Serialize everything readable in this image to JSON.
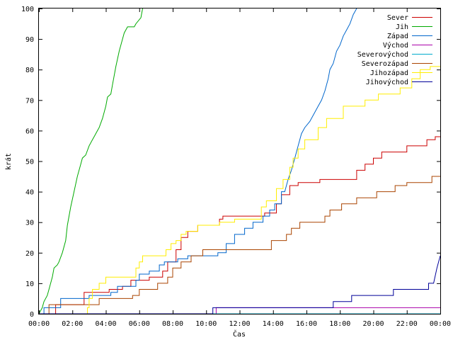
{
  "chart_data": {
    "type": "line",
    "xlabel": "Čas",
    "ylabel": "krát",
    "xlim": [
      0,
      24
    ],
    "ylim": [
      0,
      100
    ],
    "x_ticks": [
      {
        "value": 0,
        "label": "00:00"
      },
      {
        "value": 2,
        "label": "02:00"
      },
      {
        "value": 4,
        "label": "04:00"
      },
      {
        "value": 6,
        "label": "06:00"
      },
      {
        "value": 8,
        "label": "08:00"
      },
      {
        "value": 10,
        "label": "10:00"
      },
      {
        "value": 12,
        "label": "12:00"
      },
      {
        "value": 14,
        "label": "14:00"
      },
      {
        "value": 16,
        "label": "16:00"
      },
      {
        "value": 18,
        "label": "18:00"
      },
      {
        "value": 20,
        "label": "20:00"
      },
      {
        "value": 22,
        "label": "22:00"
      },
      {
        "value": 24,
        "label": "00:00"
      }
    ],
    "y_ticks": [
      0,
      10,
      20,
      30,
      40,
      50,
      60,
      70,
      80,
      90,
      100
    ],
    "grid": false,
    "legend_position": "top-right",
    "series": [
      {
        "name": "Sever",
        "color": "#cc0000",
        "points": [
          [
            0,
            0
          ],
          [
            1,
            0
          ],
          [
            1,
            3
          ],
          [
            2.7,
            3
          ],
          [
            2.7,
            7
          ],
          [
            4.2,
            7
          ],
          [
            4.2,
            8
          ],
          [
            5,
            8
          ],
          [
            5,
            9
          ],
          [
            5.5,
            9
          ],
          [
            5.5,
            11
          ],
          [
            6.6,
            11
          ],
          [
            6.6,
            12
          ],
          [
            7.4,
            12
          ],
          [
            7.4,
            14
          ],
          [
            7.7,
            14
          ],
          [
            7.7,
            17
          ],
          [
            8.2,
            17
          ],
          [
            8.2,
            21
          ],
          [
            8.5,
            21
          ],
          [
            8.5,
            25
          ],
          [
            8.9,
            25
          ],
          [
            8.9,
            27
          ],
          [
            9.5,
            27
          ],
          [
            9.5,
            29
          ],
          [
            10.4,
            29
          ],
          [
            10.4,
            29
          ],
          [
            10.8,
            29
          ],
          [
            10.8,
            31
          ],
          [
            11,
            31
          ],
          [
            11,
            32
          ],
          [
            13.5,
            32
          ],
          [
            13.5,
            33
          ],
          [
            14.2,
            33
          ],
          [
            14.2,
            36
          ],
          [
            14.5,
            36
          ],
          [
            14.5,
            39
          ],
          [
            15,
            39
          ],
          [
            15,
            42
          ],
          [
            15.5,
            42
          ],
          [
            15.5,
            43
          ],
          [
            16.8,
            43
          ],
          [
            16.8,
            44
          ],
          [
            19,
            44
          ],
          [
            19,
            47
          ],
          [
            19.5,
            47
          ],
          [
            19.5,
            49
          ],
          [
            20,
            49
          ],
          [
            20,
            51
          ],
          [
            20.5,
            51
          ],
          [
            20.5,
            53
          ],
          [
            22,
            53
          ],
          [
            22,
            55
          ],
          [
            23.2,
            55
          ],
          [
            23.2,
            57
          ],
          [
            23.7,
            57
          ],
          [
            23.7,
            58
          ],
          [
            24,
            58
          ]
        ]
      },
      {
        "name": "Jih",
        "color": "#00aa00",
        "points": [
          [
            0,
            0
          ],
          [
            0.2,
            2
          ],
          [
            0.3,
            4
          ],
          [
            0.5,
            6
          ],
          [
            0.6,
            8
          ],
          [
            0.8,
            12
          ],
          [
            0.9,
            15
          ],
          [
            1.1,
            16
          ],
          [
            1.2,
            17
          ],
          [
            1.4,
            20
          ],
          [
            1.6,
            24
          ],
          [
            1.7,
            29
          ],
          [
            1.9,
            35
          ],
          [
            2.1,
            40
          ],
          [
            2.3,
            45
          ],
          [
            2.5,
            49
          ],
          [
            2.6,
            51
          ],
          [
            2.8,
            52
          ],
          [
            3,
            55
          ],
          [
            3.2,
            57
          ],
          [
            3.3,
            58
          ],
          [
            3.5,
            60
          ],
          [
            3.6,
            61
          ],
          [
            3.8,
            64
          ],
          [
            4,
            68
          ],
          [
            4.1,
            71
          ],
          [
            4.3,
            72
          ],
          [
            4.4,
            75
          ],
          [
            4.6,
            81
          ],
          [
            4.8,
            86
          ],
          [
            5,
            90
          ],
          [
            5.1,
            92
          ],
          [
            5.3,
            94
          ],
          [
            5.7,
            94
          ],
          [
            5.8,
            95
          ],
          [
            6.1,
            97
          ],
          [
            6.2,
            100
          ]
        ]
      },
      {
        "name": "Západ",
        "color": "#0066cc",
        "points": [
          [
            0,
            0
          ],
          [
            0.3,
            0
          ],
          [
            0.3,
            2
          ],
          [
            1.3,
            2
          ],
          [
            1.3,
            5
          ],
          [
            3,
            5
          ],
          [
            3,
            6
          ],
          [
            4.3,
            6
          ],
          [
            4.3,
            7
          ],
          [
            4.7,
            7
          ],
          [
            4.7,
            9
          ],
          [
            5.8,
            9
          ],
          [
            5.8,
            11
          ],
          [
            6,
            11
          ],
          [
            6,
            13
          ],
          [
            6.6,
            13
          ],
          [
            6.6,
            14
          ],
          [
            7.2,
            14
          ],
          [
            7.2,
            16
          ],
          [
            7.5,
            16
          ],
          [
            7.5,
            17
          ],
          [
            8.3,
            17
          ],
          [
            8.3,
            18
          ],
          [
            8.9,
            18
          ],
          [
            8.9,
            19
          ],
          [
            10.7,
            19
          ],
          [
            10.7,
            20
          ],
          [
            11.2,
            20
          ],
          [
            11.2,
            23
          ],
          [
            11.7,
            23
          ],
          [
            11.7,
            26
          ],
          [
            12.3,
            26
          ],
          [
            12.3,
            28
          ],
          [
            12.8,
            28
          ],
          [
            12.8,
            30
          ],
          [
            13.4,
            30
          ],
          [
            13.4,
            32
          ],
          [
            13.8,
            32
          ],
          [
            13.8,
            34
          ],
          [
            14.1,
            34
          ],
          [
            14.1,
            36
          ],
          [
            14.5,
            36
          ],
          [
            14.5,
            40
          ],
          [
            14.7,
            40
          ],
          [
            14.9,
            44
          ],
          [
            15.1,
            47
          ],
          [
            15.3,
            51
          ],
          [
            15.5,
            55
          ],
          [
            15.7,
            59
          ],
          [
            15.9,
            61
          ],
          [
            16.2,
            63
          ],
          [
            16.5,
            66
          ],
          [
            16.7,
            68
          ],
          [
            16.9,
            70
          ],
          [
            17.1,
            73
          ],
          [
            17.3,
            77
          ],
          [
            17.4,
            80
          ],
          [
            17.6,
            82
          ],
          [
            17.8,
            86
          ],
          [
            18,
            88
          ],
          [
            18.2,
            91
          ],
          [
            18.4,
            93
          ],
          [
            18.6,
            95
          ],
          [
            18.8,
            98
          ],
          [
            19,
            100
          ]
        ]
      },
      {
        "name": "Východ",
        "color": "#aa00aa",
        "points": [
          [
            0,
            0
          ],
          [
            10.6,
            0
          ],
          [
            10.6,
            2
          ],
          [
            24,
            2
          ]
        ]
      },
      {
        "name": "Severovýchod",
        "color": "#00aacc",
        "points": [
          [
            0,
            0
          ],
          [
            24,
            0
          ]
        ]
      },
      {
        "name": "Severozápad",
        "color": "#aa4400",
        "points": [
          [
            0,
            0
          ],
          [
            0.6,
            0
          ],
          [
            0.6,
            3
          ],
          [
            3.6,
            3
          ],
          [
            3.6,
            5
          ],
          [
            5.6,
            5
          ],
          [
            5.6,
            6
          ],
          [
            6,
            6
          ],
          [
            6,
            8
          ],
          [
            7.1,
            8
          ],
          [
            7.1,
            10
          ],
          [
            7.7,
            10
          ],
          [
            7.7,
            12
          ],
          [
            8,
            12
          ],
          [
            8,
            15
          ],
          [
            8.5,
            15
          ],
          [
            8.5,
            17
          ],
          [
            9.1,
            17
          ],
          [
            9.1,
            19
          ],
          [
            9.8,
            19
          ],
          [
            9.8,
            21
          ],
          [
            13.9,
            21
          ],
          [
            13.9,
            24
          ],
          [
            14.8,
            24
          ],
          [
            14.8,
            26
          ],
          [
            15.1,
            26
          ],
          [
            15.1,
            28
          ],
          [
            15.6,
            28
          ],
          [
            15.6,
            30
          ],
          [
            17.1,
            30
          ],
          [
            17.1,
            32
          ],
          [
            17.4,
            32
          ],
          [
            17.4,
            34
          ],
          [
            18.1,
            34
          ],
          [
            18.1,
            36
          ],
          [
            19,
            36
          ],
          [
            19,
            38
          ],
          [
            20.2,
            38
          ],
          [
            20.2,
            40
          ],
          [
            21.3,
            40
          ],
          [
            21.3,
            42
          ],
          [
            22,
            42
          ],
          [
            22,
            43
          ],
          [
            23.5,
            43
          ],
          [
            23.5,
            45
          ],
          [
            24,
            45
          ]
        ]
      },
      {
        "name": "Jihozápad",
        "color": "#ffee00",
        "points": [
          [
            0,
            0
          ],
          [
            2.9,
            0
          ],
          [
            2.9,
            2
          ],
          [
            3,
            2
          ],
          [
            3,
            5
          ],
          [
            3.2,
            5
          ],
          [
            3.2,
            8
          ],
          [
            3.6,
            8
          ],
          [
            3.6,
            10
          ],
          [
            4,
            10
          ],
          [
            4,
            12
          ],
          [
            5.8,
            12
          ],
          [
            5.8,
            15
          ],
          [
            6,
            15
          ],
          [
            6,
            17
          ],
          [
            6.2,
            17
          ],
          [
            6.2,
            19
          ],
          [
            7.6,
            19
          ],
          [
            7.6,
            21
          ],
          [
            7.9,
            21
          ],
          [
            7.9,
            23
          ],
          [
            8.2,
            23
          ],
          [
            8.2,
            24
          ],
          [
            8.5,
            24
          ],
          [
            8.5,
            26
          ],
          [
            8.8,
            26
          ],
          [
            8.8,
            27
          ],
          [
            9.5,
            27
          ],
          [
            9.5,
            29
          ],
          [
            10.8,
            29
          ],
          [
            10.8,
            30
          ],
          [
            11.7,
            30
          ],
          [
            11.7,
            31
          ],
          [
            13.3,
            31
          ],
          [
            13.3,
            35
          ],
          [
            13.6,
            35
          ],
          [
            13.6,
            37
          ],
          [
            14.2,
            37
          ],
          [
            14.2,
            41
          ],
          [
            14.6,
            41
          ],
          [
            14.6,
            44
          ],
          [
            15,
            44
          ],
          [
            15,
            48
          ],
          [
            15.2,
            48
          ],
          [
            15.2,
            51
          ],
          [
            15.5,
            51
          ],
          [
            15.5,
            54
          ],
          [
            15.9,
            54
          ],
          [
            15.9,
            57
          ],
          [
            16.7,
            57
          ],
          [
            16.7,
            61
          ],
          [
            17.2,
            61
          ],
          [
            17.2,
            64
          ],
          [
            18.2,
            64
          ],
          [
            18.2,
            68
          ],
          [
            19.5,
            68
          ],
          [
            19.5,
            70
          ],
          [
            20.3,
            70
          ],
          [
            20.3,
            72
          ],
          [
            21.6,
            72
          ],
          [
            21.6,
            74
          ],
          [
            22.3,
            74
          ],
          [
            22.3,
            77
          ],
          [
            22.8,
            77
          ],
          [
            22.8,
            80
          ],
          [
            23.4,
            80
          ],
          [
            23.4,
            81
          ],
          [
            24,
            81
          ]
        ]
      },
      {
        "name": "Jihovýchod",
        "color": "#000099",
        "points": [
          [
            0,
            0
          ],
          [
            10.4,
            0
          ],
          [
            10.4,
            2
          ],
          [
            17.6,
            2
          ],
          [
            17.6,
            4
          ],
          [
            18.7,
            4
          ],
          [
            18.7,
            6
          ],
          [
            21.2,
            6
          ],
          [
            21.2,
            8
          ],
          [
            23.3,
            8
          ],
          [
            23.3,
            10
          ],
          [
            23.6,
            10
          ],
          [
            23.8,
            15
          ],
          [
            24,
            19
          ]
        ]
      }
    ]
  }
}
